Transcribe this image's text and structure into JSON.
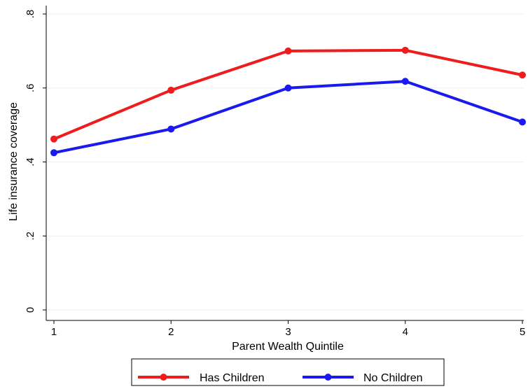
{
  "chart_data": {
    "type": "line",
    "title": "",
    "xlabel": "Parent Wealth Quintile",
    "ylabel": "Life insurance coverage",
    "x": [
      1,
      2,
      3,
      4,
      5
    ],
    "xticks": [
      "1",
      "2",
      "3",
      "4",
      "5"
    ],
    "yticks": [
      {
        "value": 0,
        "label": "0"
      },
      {
        "value": 0.2,
        "label": ".2"
      },
      {
        "value": 0.4,
        "label": ".4"
      },
      {
        "value": 0.6,
        "label": ".6"
      },
      {
        "value": 0.8,
        "label": ".8"
      }
    ],
    "xlim": [
      1,
      5
    ],
    "ylim": [
      0,
      0.8
    ],
    "grid": true,
    "legend_position": "bottom",
    "series": [
      {
        "name": "Has Children",
        "color": "#ee1c1c",
        "values": [
          0.462,
          0.594,
          0.7,
          0.702,
          0.635
        ]
      },
      {
        "name": "No Children",
        "color": "#1a1aee",
        "values": [
          0.425,
          0.489,
          0.6,
          0.618,
          0.508
        ]
      }
    ]
  }
}
